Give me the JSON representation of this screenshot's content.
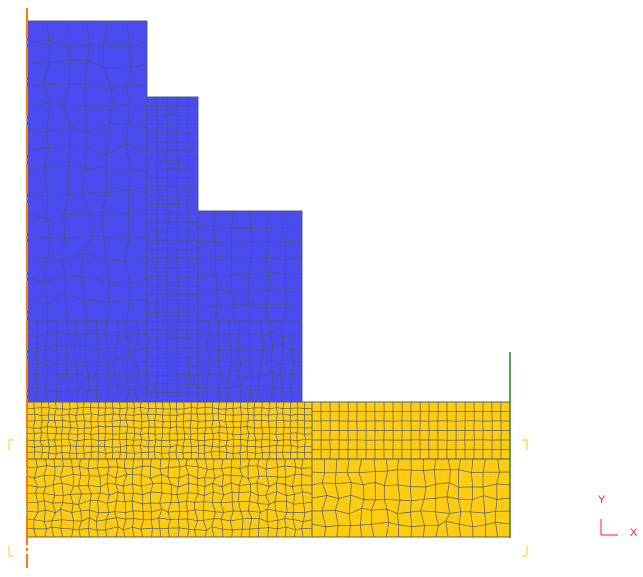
{
  "scene": {
    "background": "#ffffff",
    "colors": {
      "upper_body": "#4a4cf0",
      "lower_body": "#ffcc11",
      "mesh_line": "#4a5a78",
      "symmetry_axis": "#ff7a00",
      "boundary_line": "#2e7d32",
      "bracket": "#ffcc11",
      "triad": "#ff2020"
    }
  },
  "triad": {
    "y_label": "Y",
    "x_label": "X"
  }
}
